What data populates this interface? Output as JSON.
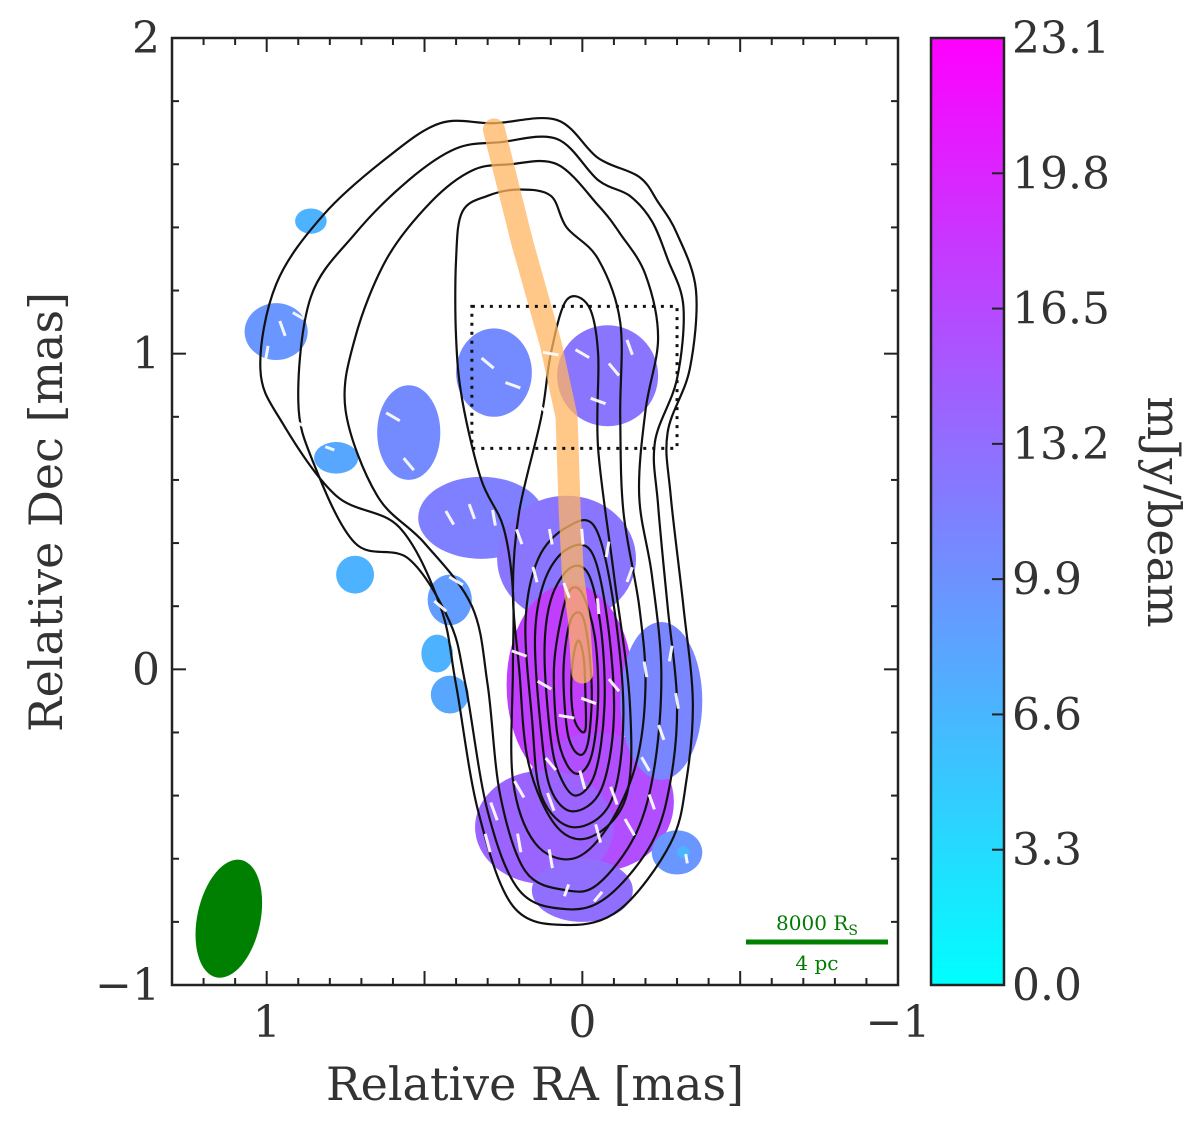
{
  "chart_data": {
    "type": "heatmap",
    "xlabel": "Relative RA [mas]",
    "ylabel": "Relative Dec [mas]",
    "xlim": [
      1.3,
      -1.0
    ],
    "ylim": [
      -1.0,
      2.0
    ],
    "x_ticks": [
      {
        "value": 1,
        "label": "1"
      },
      {
        "value": 0,
        "label": "0"
      },
      {
        "value": -1,
        "label": "−1"
      }
    ],
    "y_ticks": [
      {
        "value": -1,
        "label": "−1"
      },
      {
        "value": 0,
        "label": "0"
      },
      {
        "value": 1,
        "label": "1"
      },
      {
        "value": 2,
        "label": "2"
      }
    ],
    "colorbar": {
      "label": "mJy/beam",
      "min": 0.0,
      "max": 23.1,
      "ticks": [
        "0.0",
        "3.3",
        "6.6",
        "9.9",
        "13.2",
        "16.5",
        "19.8",
        "23.1"
      ],
      "colors": [
        "#00ffff",
        "#ff00ff"
      ]
    },
    "jet_ridge": {
      "color": "#ffb561",
      "points": [
        [
          0.28,
          1.71
        ],
        [
          0.19,
          1.35
        ],
        [
          0.1,
          1.03
        ],
        [
          0.05,
          0.8
        ],
        [
          0.04,
          0.5
        ],
        [
          0.03,
          0.3
        ],
        [
          0.01,
          0.15
        ],
        [
          0.0,
          -0.01
        ]
      ]
    },
    "box": {
      "x": [
        0.35,
        -0.3
      ],
      "y": [
        0.7,
        1.15
      ],
      "style": "dotted"
    },
    "beam": {
      "color": "#008000",
      "center": [
        1.12,
        -0.79
      ],
      "semi_major": 0.19,
      "semi_minor": 0.1,
      "tilt_deg": 12
    },
    "scale_bar": {
      "top_label": "8000 R",
      "top_sub": "S",
      "bottom_label": "4 pc",
      "color": "#008000",
      "length_mas": 0.45
    },
    "contours": [
      [
        [
          0.28,
          1.73
        ],
        [
          0.08,
          1.74
        ],
        [
          -0.05,
          1.62
        ],
        [
          -0.18,
          1.56
        ],
        [
          -0.24,
          1.48
        ],
        [
          -0.3,
          1.38
        ],
        [
          -0.36,
          1.2
        ],
        [
          -0.34,
          0.95
        ],
        [
          -0.27,
          0.75
        ],
        [
          -0.28,
          0.55
        ],
        [
          -0.32,
          0.2
        ],
        [
          -0.35,
          -0.1
        ],
        [
          -0.33,
          -0.35
        ],
        [
          -0.28,
          -0.55
        ],
        [
          -0.12,
          -0.76
        ],
        [
          0.05,
          -0.81
        ],
        [
          0.22,
          -0.75
        ],
        [
          0.33,
          -0.45
        ],
        [
          0.4,
          -0.05
        ],
        [
          0.45,
          0.2
        ],
        [
          0.58,
          0.45
        ],
        [
          0.78,
          0.55
        ],
        [
          0.95,
          0.78
        ],
        [
          1.02,
          0.95
        ],
        [
          0.97,
          1.22
        ],
        [
          0.82,
          1.44
        ],
        [
          0.62,
          1.62
        ],
        [
          0.45,
          1.73
        ]
      ],
      [
        [
          0.26,
          1.67
        ],
        [
          0.08,
          1.68
        ],
        [
          -0.05,
          1.55
        ],
        [
          -0.15,
          1.5
        ],
        [
          -0.22,
          1.42
        ],
        [
          -0.27,
          1.3
        ],
        [
          -0.32,
          1.15
        ],
        [
          -0.3,
          0.92
        ],
        [
          -0.23,
          0.72
        ],
        [
          -0.24,
          0.52
        ],
        [
          -0.27,
          0.2
        ],
        [
          -0.3,
          -0.1
        ],
        [
          -0.28,
          -0.35
        ],
        [
          -0.22,
          -0.55
        ],
        [
          -0.08,
          -0.72
        ],
        [
          0.05,
          -0.76
        ],
        [
          0.2,
          -0.7
        ],
        [
          0.3,
          -0.45
        ],
        [
          0.37,
          -0.05
        ],
        [
          0.42,
          0.15
        ],
        [
          0.55,
          0.35
        ],
        [
          0.72,
          0.4
        ],
        [
          0.85,
          0.65
        ],
        [
          0.9,
          0.85
        ],
        [
          0.86,
          1.18
        ],
        [
          0.72,
          1.38
        ],
        [
          0.55,
          1.55
        ],
        [
          0.4,
          1.65
        ]
      ],
      [
        [
          0.23,
          1.6
        ],
        [
          0.08,
          1.6
        ],
        [
          -0.05,
          1.47
        ],
        [
          -0.12,
          1.38
        ],
        [
          -0.2,
          1.25
        ],
        [
          -0.24,
          1.05
        ],
        [
          -0.2,
          0.82
        ],
        [
          -0.18,
          0.55
        ],
        [
          -0.22,
          0.3
        ],
        [
          -0.25,
          0.0
        ],
        [
          -0.23,
          -0.3
        ],
        [
          -0.17,
          -0.52
        ],
        [
          -0.05,
          -0.68
        ],
        [
          0.05,
          -0.7
        ],
        [
          0.18,
          -0.64
        ],
        [
          0.26,
          -0.4
        ],
        [
          0.3,
          -0.05
        ],
        [
          0.35,
          0.2
        ],
        [
          0.5,
          0.4
        ],
        [
          0.65,
          0.55
        ],
        [
          0.75,
          0.82
        ],
        [
          0.72,
          1.05
        ],
        [
          0.62,
          1.3
        ],
        [
          0.48,
          1.48
        ],
        [
          0.35,
          1.58
        ]
      ],
      [
        [
          0.3,
          1.5
        ],
        [
          0.2,
          1.52
        ],
        [
          0.1,
          1.5
        ],
        [
          0.05,
          1.4
        ],
        [
          -0.05,
          1.3
        ],
        [
          -0.12,
          1.1
        ],
        [
          -0.12,
          0.8
        ],
        [
          -0.13,
          0.5
        ],
        [
          -0.18,
          0.2
        ],
        [
          -0.2,
          -0.05
        ],
        [
          -0.17,
          -0.3
        ],
        [
          -0.08,
          -0.5
        ],
        [
          0.03,
          -0.6
        ],
        [
          0.15,
          -0.55
        ],
        [
          0.22,
          -0.35
        ],
        [
          0.22,
          0.0
        ],
        [
          0.22,
          0.25
        ],
        [
          0.25,
          0.45
        ],
        [
          0.32,
          0.6
        ],
        [
          0.38,
          0.85
        ],
        [
          0.4,
          1.05
        ],
        [
          0.4,
          1.3
        ],
        [
          0.38,
          1.45
        ]
      ],
      [
        [
          0.05,
          1.17
        ],
        [
          0.1,
          1.0
        ],
        [
          0.13,
          0.8
        ],
        [
          0.2,
          0.5
        ],
        [
          0.22,
          0.25
        ],
        [
          0.2,
          0.0
        ],
        [
          0.17,
          -0.3
        ],
        [
          0.08,
          -0.5
        ],
        [
          -0.03,
          -0.53
        ],
        [
          -0.14,
          -0.4
        ],
        [
          -0.15,
          -0.1
        ],
        [
          -0.1,
          0.3
        ],
        [
          -0.05,
          0.7
        ],
        [
          -0.05,
          1.0
        ],
        [
          -0.02,
          1.15
        ]
      ],
      [
        [
          0.18,
          0.15
        ],
        [
          0.16,
          -0.15
        ],
        [
          0.13,
          -0.4
        ],
        [
          0.03,
          -0.5
        ],
        [
          -0.09,
          -0.42
        ],
        [
          -0.13,
          -0.15
        ],
        [
          -0.1,
          0.2
        ],
        [
          -0.04,
          0.45
        ],
        [
          0.05,
          0.45
        ],
        [
          0.14,
          0.35
        ]
      ],
      [
        [
          0.15,
          0.1
        ],
        [
          0.13,
          -0.2
        ],
        [
          0.1,
          -0.38
        ],
        [
          0.03,
          -0.45
        ],
        [
          -0.06,
          -0.38
        ],
        [
          -0.1,
          -0.15
        ],
        [
          -0.08,
          0.15
        ],
        [
          -0.03,
          0.37
        ],
        [
          0.05,
          0.38
        ],
        [
          0.12,
          0.28
        ]
      ],
      [
        [
          0.12,
          0.05
        ],
        [
          0.1,
          -0.22
        ],
        [
          0.07,
          -0.34
        ],
        [
          0.02,
          -0.4
        ],
        [
          -0.04,
          -0.33
        ],
        [
          -0.07,
          -0.12
        ],
        [
          -0.06,
          0.12
        ],
        [
          -0.02,
          0.3
        ],
        [
          0.04,
          0.32
        ],
        [
          0.1,
          0.22
        ]
      ],
      [
        [
          0.09,
          0.0
        ],
        [
          0.08,
          -0.2
        ],
        [
          0.05,
          -0.3
        ],
        [
          0.01,
          -0.33
        ],
        [
          -0.03,
          -0.27
        ],
        [
          -0.05,
          -0.1
        ],
        [
          -0.04,
          0.1
        ],
        [
          0.0,
          0.24
        ],
        [
          0.04,
          0.25
        ],
        [
          0.07,
          0.15
        ]
      ],
      [
        [
          0.06,
          -0.02
        ],
        [
          0.05,
          -0.18
        ],
        [
          0.03,
          -0.25
        ],
        [
          0.0,
          -0.27
        ],
        [
          -0.02,
          -0.22
        ],
        [
          -0.03,
          -0.08
        ],
        [
          -0.02,
          0.07
        ],
        [
          0.0,
          0.17
        ],
        [
          0.03,
          0.17
        ],
        [
          0.05,
          0.1
        ]
      ],
      [
        [
          0.035,
          -0.04
        ],
        [
          0.03,
          -0.14
        ],
        [
          0.01,
          -0.19
        ],
        [
          -0.01,
          -0.19
        ],
        [
          -0.01,
          -0.09
        ],
        [
          -0.005,
          0.03
        ],
        [
          0.01,
          0.09
        ],
        [
          0.025,
          0.06
        ]
      ]
    ],
    "polarized_regions": [
      {
        "x": 0.97,
        "y": 1.07,
        "rx": 0.1,
        "ry": 0.09,
        "level": 9.5
      },
      {
        "x": 0.86,
        "y": 1.42,
        "rx": 0.05,
        "ry": 0.04,
        "level": 7.0
      },
      {
        "x": 0.28,
        "y": 0.94,
        "rx": 0.12,
        "ry": 0.14,
        "level": 10.5
      },
      {
        "x": -0.08,
        "y": 0.93,
        "rx": 0.16,
        "ry": 0.16,
        "level": 12.5
      },
      {
        "x": 0.55,
        "y": 0.75,
        "rx": 0.1,
        "ry": 0.15,
        "level": 10.5
      },
      {
        "x": 0.78,
        "y": 0.67,
        "rx": 0.07,
        "ry": 0.05,
        "level": 8.0
      },
      {
        "x": 0.72,
        "y": 0.3,
        "rx": 0.06,
        "ry": 0.06,
        "level": 7.0
      },
      {
        "x": 0.32,
        "y": 0.48,
        "rx": 0.2,
        "ry": 0.13,
        "level": 11.5
      },
      {
        "x": 0.05,
        "y": 0.35,
        "rx": 0.22,
        "ry": 0.2,
        "level": 12.5
      },
      {
        "x": 0.42,
        "y": 0.22,
        "rx": 0.07,
        "ry": 0.08,
        "level": 9.0
      },
      {
        "x": 0.46,
        "y": 0.05,
        "rx": 0.05,
        "ry": 0.06,
        "level": 7.0
      },
      {
        "x": 0.04,
        "y": -0.05,
        "rx": 0.2,
        "ry": 0.32,
        "level": 17.5
      },
      {
        "x": -0.05,
        "y": -0.42,
        "rx": 0.24,
        "ry": 0.22,
        "level": 16.0
      },
      {
        "x": -0.25,
        "y": -0.1,
        "rx": 0.13,
        "ry": 0.25,
        "level": 11.0
      },
      {
        "x": 0.12,
        "y": -0.5,
        "rx": 0.22,
        "ry": 0.18,
        "level": 14.0
      },
      {
        "x": 0.42,
        "y": -0.08,
        "rx": 0.06,
        "ry": 0.06,
        "level": 8.0
      },
      {
        "x": 0.0,
        "y": -0.7,
        "rx": 0.16,
        "ry": 0.1,
        "level": 13.0
      },
      {
        "x": -0.3,
        "y": -0.58,
        "rx": 0.08,
        "ry": 0.07,
        "level": 9.5
      },
      {
        "x": -0.32,
        "y": -0.58,
        "rx": 0.02,
        "ry": 0.02,
        "level": 7.0
      }
    ],
    "evpa_sticks": [
      [
        0.95,
        1.08,
        20,
        0.05
      ],
      [
        1.0,
        1.0,
        -10,
        0.05
      ],
      [
        0.9,
        1.12,
        60,
        0.04
      ],
      [
        0.85,
        1.05,
        30,
        0.05
      ],
      [
        0.3,
        0.97,
        50,
        0.05
      ],
      [
        0.22,
        0.9,
        70,
        0.05
      ],
      [
        0.1,
        1.0,
        80,
        0.05
      ],
      [
        0.0,
        1.0,
        60,
        0.05
      ],
      [
        -0.1,
        0.95,
        40,
        0.05
      ],
      [
        -0.15,
        1.02,
        20,
        0.05
      ],
      [
        -0.05,
        0.85,
        70,
        0.05
      ],
      [
        0.12,
        0.82,
        50,
        0.05
      ],
      [
        0.6,
        0.8,
        60,
        0.05
      ],
      [
        0.55,
        0.65,
        40,
        0.05
      ],
      [
        0.5,
        0.58,
        50,
        0.05
      ],
      [
        0.42,
        0.48,
        30,
        0.05
      ],
      [
        0.35,
        0.5,
        20,
        0.05
      ],
      [
        0.28,
        0.48,
        10,
        0.05
      ],
      [
        0.2,
        0.42,
        20,
        0.05
      ],
      [
        0.1,
        0.42,
        10,
        0.05
      ],
      [
        0.0,
        0.42,
        5,
        0.05
      ],
      [
        -0.08,
        0.38,
        -10,
        0.05
      ],
      [
        -0.15,
        0.3,
        -20,
        0.05
      ],
      [
        0.15,
        0.3,
        15,
        0.05
      ],
      [
        0.05,
        0.25,
        20,
        0.05
      ],
      [
        -0.05,
        0.2,
        5,
        0.05
      ],
      [
        0.4,
        0.28,
        60,
        0.05
      ],
      [
        0.45,
        0.2,
        50,
        0.05
      ],
      [
        0.25,
        0.15,
        40,
        0.05
      ],
      [
        0.2,
        0.05,
        70,
        0.05
      ],
      [
        0.12,
        -0.05,
        60,
        0.05
      ],
      [
        0.05,
        -0.15,
        80,
        0.05
      ],
      [
        -0.02,
        -0.1,
        70,
        0.05
      ],
      [
        -0.1,
        -0.05,
        40,
        0.05
      ],
      [
        -0.2,
        0.0,
        10,
        0.05
      ],
      [
        -0.28,
        0.05,
        -10,
        0.05
      ],
      [
        -0.3,
        -0.1,
        10,
        0.05
      ],
      [
        -0.25,
        -0.2,
        20,
        0.05
      ],
      [
        -0.2,
        -0.3,
        30,
        0.05
      ],
      [
        0.1,
        -0.3,
        40,
        0.05
      ],
      [
        0.2,
        -0.38,
        30,
        0.06
      ],
      [
        0.1,
        -0.42,
        20,
        0.06
      ],
      [
        0.0,
        -0.35,
        15,
        0.06
      ],
      [
        -0.1,
        -0.4,
        20,
        0.06
      ],
      [
        0.28,
        -0.45,
        20,
        0.06
      ],
      [
        0.3,
        -0.55,
        15,
        0.06
      ],
      [
        0.2,
        -0.55,
        10,
        0.06
      ],
      [
        0.1,
        -0.6,
        10,
        0.06
      ],
      [
        -0.05,
        -0.52,
        15,
        0.06
      ],
      [
        -0.15,
        -0.5,
        30,
        0.06
      ],
      [
        0.05,
        -0.7,
        -20,
        0.04
      ],
      [
        -0.05,
        -0.72,
        -40,
        0.04
      ],
      [
        0.35,
        -0.05,
        10,
        0.05
      ],
      [
        0.3,
        -0.18,
        20,
        0.05
      ],
      [
        0.42,
        -0.22,
        30,
        0.05
      ],
      [
        -0.22,
        -0.42,
        20,
        0.05
      ],
      [
        -0.33,
        -0.6,
        10,
        0.03
      ],
      [
        0.9,
        0.78,
        60,
        0.03
      ],
      [
        0.8,
        0.7,
        70,
        0.03
      ],
      [
        0.55,
        0.3,
        80,
        0.03
      ]
    ]
  }
}
